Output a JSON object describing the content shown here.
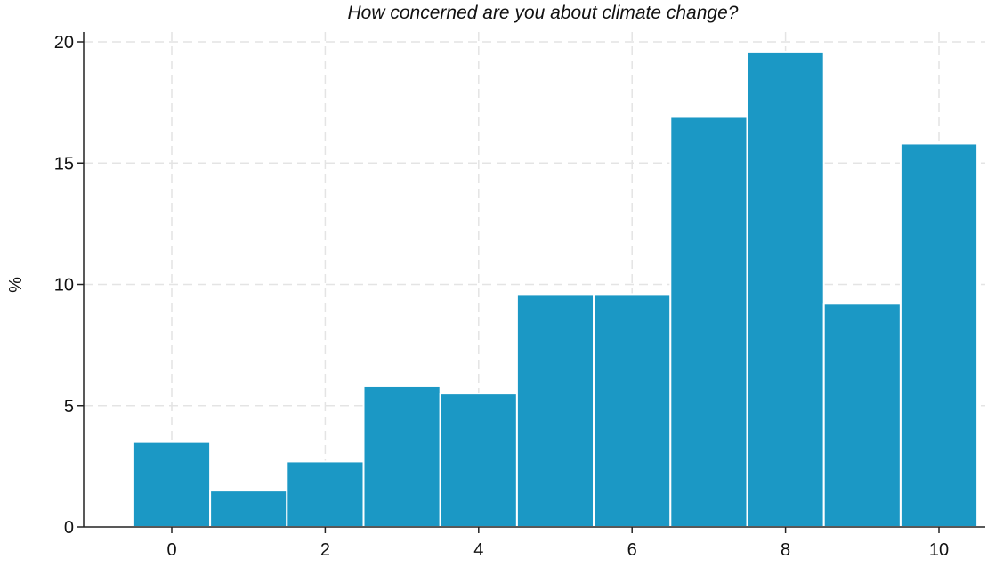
{
  "chart_data": {
    "type": "bar",
    "title": "How concerned are you about climate change?",
    "xlabel": "",
    "ylabel": "%",
    "categories": [
      "0",
      "1",
      "2",
      "3",
      "4",
      "5",
      "6",
      "7",
      "8",
      "9",
      "10"
    ],
    "values": [
      3.5,
      1.5,
      2.7,
      5.8,
      5.5,
      9.6,
      9.6,
      16.9,
      19.6,
      9.2,
      15.8
    ],
    "xlim": [
      -0.6,
      10.6
    ],
    "ylim": [
      0,
      20
    ],
    "x_ticks": [
      "0",
      "2",
      "4",
      "6",
      "8",
      "10"
    ],
    "y_ticks": [
      "0",
      "5",
      "10",
      "15",
      "20"
    ],
    "grid": true,
    "bar_color": "#1b98c5",
    "grid_color": "#e4e4e4"
  }
}
